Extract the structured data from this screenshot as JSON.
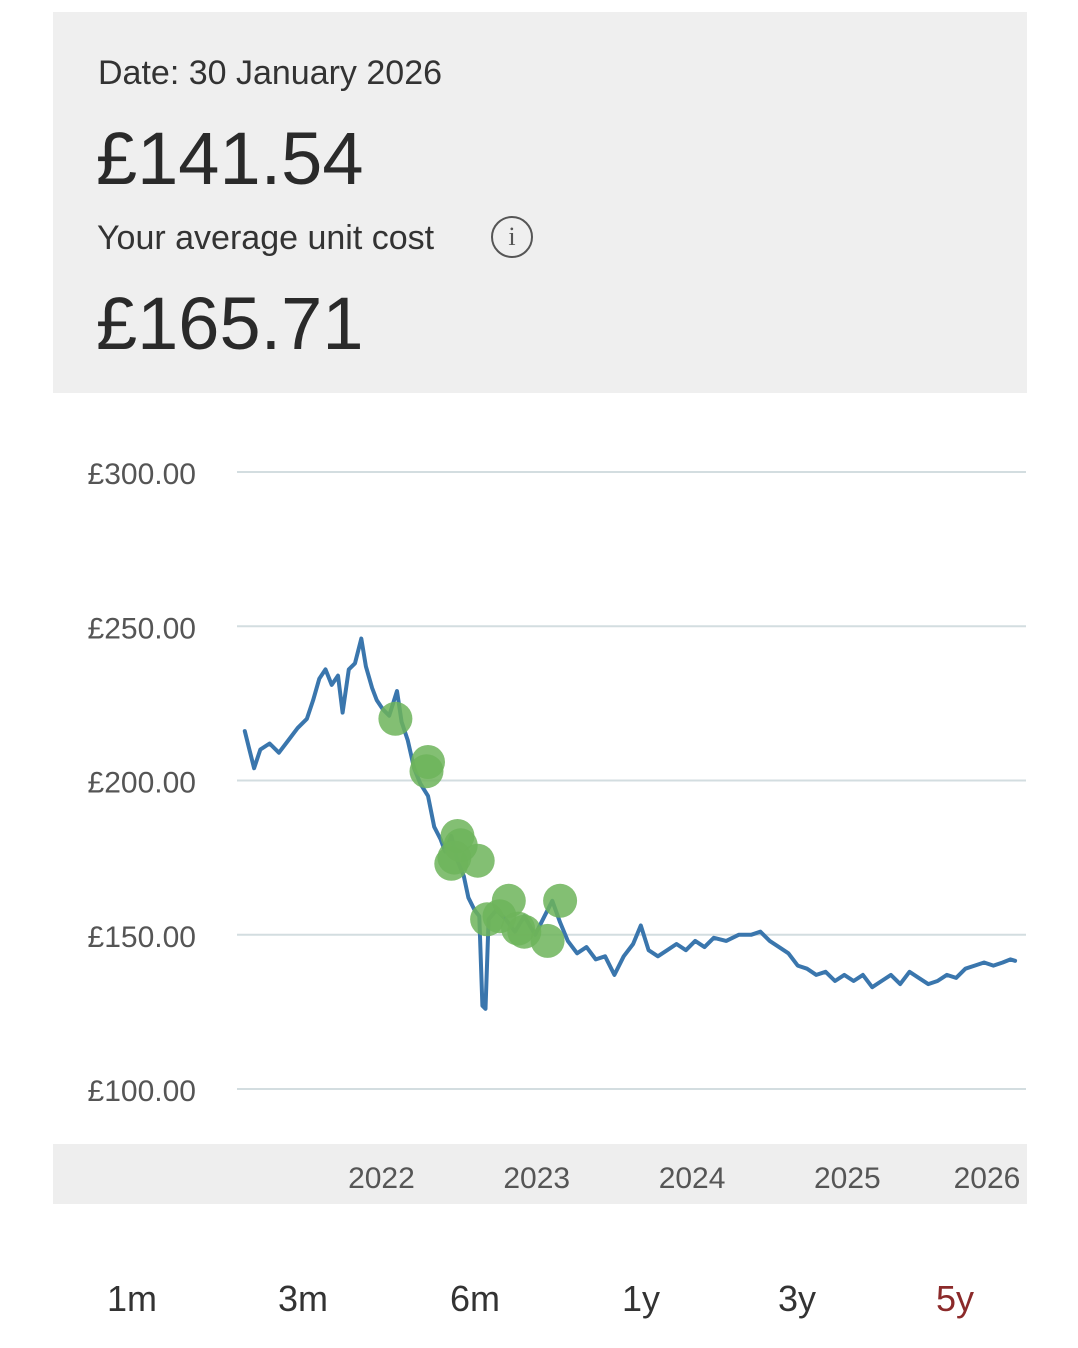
{
  "summary": {
    "date_label": "Date: 30 January 2026",
    "current_price": "£141.54",
    "avg_cost_label": "Your average unit cost",
    "avg_cost_value": "£165.71",
    "info_icon": "info-icon",
    "info_glyph": "i"
  },
  "periods": [
    {
      "label": "1m",
      "active": false
    },
    {
      "label": "3m",
      "active": false
    },
    {
      "label": "6m",
      "active": false
    },
    {
      "label": "1y",
      "active": false
    },
    {
      "label": "3y",
      "active": false
    },
    {
      "label": "5y",
      "active": true
    }
  ],
  "colors": {
    "line": "#3a76ad",
    "marker": "#6db45a",
    "grid": "#d3dde0",
    "active_period": "#8b2a2a"
  },
  "chart_data": {
    "type": "line",
    "y_ticks": [
      {
        "value": 300,
        "label": "£300.00"
      },
      {
        "value": 250,
        "label": "£250.00"
      },
      {
        "value": 200,
        "label": "£200.00"
      },
      {
        "value": 150,
        "label": "£150.00"
      },
      {
        "value": 100,
        "label": "£100.00"
      }
    ],
    "ylim": [
      100,
      300
    ],
    "xlim": [
      2021.07,
      2026.15
    ],
    "x_ticks": [
      {
        "value": 2022,
        "label": "2022"
      },
      {
        "value": 2023,
        "label": "2023"
      },
      {
        "value": 2024,
        "label": "2024"
      },
      {
        "value": 2025,
        "label": "2025"
      },
      {
        "value": 2026,
        "label": "2026"
      }
    ],
    "series": [
      {
        "points": [
          [
            2021.12,
            216
          ],
          [
            2021.15,
            210
          ],
          [
            2021.18,
            204
          ],
          [
            2021.22,
            210
          ],
          [
            2021.28,
            212
          ],
          [
            2021.34,
            209
          ],
          [
            2021.4,
            213
          ],
          [
            2021.46,
            217
          ],
          [
            2021.52,
            220
          ],
          [
            2021.56,
            226
          ],
          [
            2021.6,
            233
          ],
          [
            2021.64,
            236
          ],
          [
            2021.68,
            231
          ],
          [
            2021.72,
            234
          ],
          [
            2021.75,
            222
          ],
          [
            2021.79,
            236
          ],
          [
            2021.83,
            238
          ],
          [
            2021.87,
            246
          ],
          [
            2021.9,
            237
          ],
          [
            2021.94,
            230
          ],
          [
            2021.97,
            226
          ],
          [
            2022.01,
            223
          ],
          [
            2022.05,
            221
          ],
          [
            2022.1,
            229
          ],
          [
            2022.13,
            219
          ],
          [
            2022.17,
            213
          ],
          [
            2022.21,
            204
          ],
          [
            2022.25,
            199
          ],
          [
            2022.3,
            195
          ],
          [
            2022.34,
            185
          ],
          [
            2022.38,
            181
          ],
          [
            2022.41,
            177
          ],
          [
            2022.45,
            182
          ],
          [
            2022.49,
            174
          ],
          [
            2022.53,
            169
          ],
          [
            2022.56,
            162
          ],
          [
            2022.6,
            158
          ],
          [
            2022.63,
            156
          ],
          [
            2022.65,
            127
          ],
          [
            2022.67,
            126
          ],
          [
            2022.69,
            155
          ],
          [
            2022.74,
            158
          ],
          [
            2022.8,
            155
          ],
          [
            2022.86,
            151
          ],
          [
            2022.92,
            156
          ],
          [
            2022.99,
            150
          ],
          [
            2023.05,
            156
          ],
          [
            2023.1,
            161
          ],
          [
            2023.15,
            154
          ],
          [
            2023.2,
            148
          ],
          [
            2023.26,
            144
          ],
          [
            2023.32,
            146
          ],
          [
            2023.38,
            142
          ],
          [
            2023.44,
            143
          ],
          [
            2023.5,
            137
          ],
          [
            2023.56,
            143
          ],
          [
            2023.62,
            147
          ],
          [
            2023.67,
            153
          ],
          [
            2023.72,
            145
          ],
          [
            2023.78,
            143
          ],
          [
            2023.84,
            145
          ],
          [
            2023.9,
            147
          ],
          [
            2023.96,
            145
          ],
          [
            2024.02,
            148
          ],
          [
            2024.08,
            146
          ],
          [
            2024.14,
            149
          ],
          [
            2024.22,
            148
          ],
          [
            2024.3,
            150
          ],
          [
            2024.38,
            150
          ],
          [
            2024.44,
            151
          ],
          [
            2024.5,
            148
          ],
          [
            2024.56,
            146
          ],
          [
            2024.62,
            144
          ],
          [
            2024.68,
            140
          ],
          [
            2024.74,
            139
          ],
          [
            2024.8,
            137
          ],
          [
            2024.86,
            138
          ],
          [
            2024.92,
            135
          ],
          [
            2024.98,
            137
          ],
          [
            2025.04,
            135
          ],
          [
            2025.1,
            137
          ],
          [
            2025.16,
            133
          ],
          [
            2025.22,
            135
          ],
          [
            2025.28,
            137
          ],
          [
            2025.34,
            134
          ],
          [
            2025.4,
            138
          ],
          [
            2025.46,
            136
          ],
          [
            2025.52,
            134
          ],
          [
            2025.58,
            135
          ],
          [
            2025.64,
            137
          ],
          [
            2025.7,
            136
          ],
          [
            2025.76,
            139
          ],
          [
            2025.82,
            140
          ],
          [
            2025.88,
            141
          ],
          [
            2025.94,
            140
          ],
          [
            2026.0,
            141
          ],
          [
            2026.05,
            142
          ],
          [
            2026.08,
            141.54
          ]
        ]
      }
    ],
    "markers": [
      [
        2022.09,
        220
      ],
      [
        2022.3,
        206
      ],
      [
        2022.29,
        203
      ],
      [
        2022.49,
        182
      ],
      [
        2022.51,
        179
      ],
      [
        2022.47,
        175
      ],
      [
        2022.45,
        173
      ],
      [
        2022.62,
        174
      ],
      [
        2022.68,
        155
      ],
      [
        2022.76,
        156
      ],
      [
        2022.82,
        161
      ],
      [
        2022.88,
        152
      ],
      [
        2022.92,
        151
      ],
      [
        2023.07,
        148
      ],
      [
        2023.15,
        161
      ]
    ],
    "grid": true
  }
}
